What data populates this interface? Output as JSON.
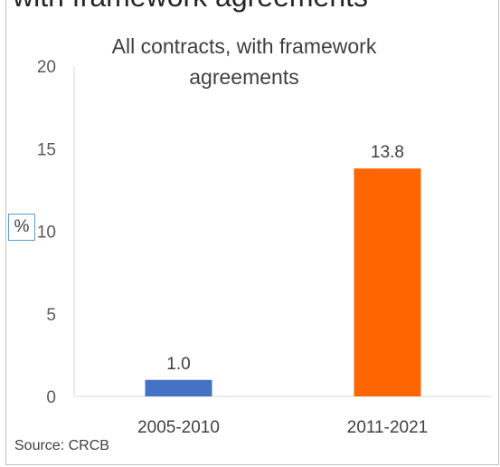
{
  "header_fragment": "with framework agreements",
  "source": "Source: CRCB",
  "unit_label": "%",
  "chart_data": {
    "type": "bar",
    "title": "All contracts, with framework agreements",
    "categories": [
      "2005-2010",
      "2011-2021"
    ],
    "values": [
      1.0,
      13.8
    ],
    "data_labels": [
      "1.0",
      "13.8"
    ],
    "bar_colors": [
      "#4472c4",
      "#ff6600"
    ],
    "ylim": [
      0,
      20
    ],
    "yticks": [
      0,
      5,
      10,
      15,
      20
    ],
    "ytick_labels": [
      "0",
      "5",
      "10",
      "15",
      "20"
    ],
    "grid": false,
    "legend": "none"
  }
}
